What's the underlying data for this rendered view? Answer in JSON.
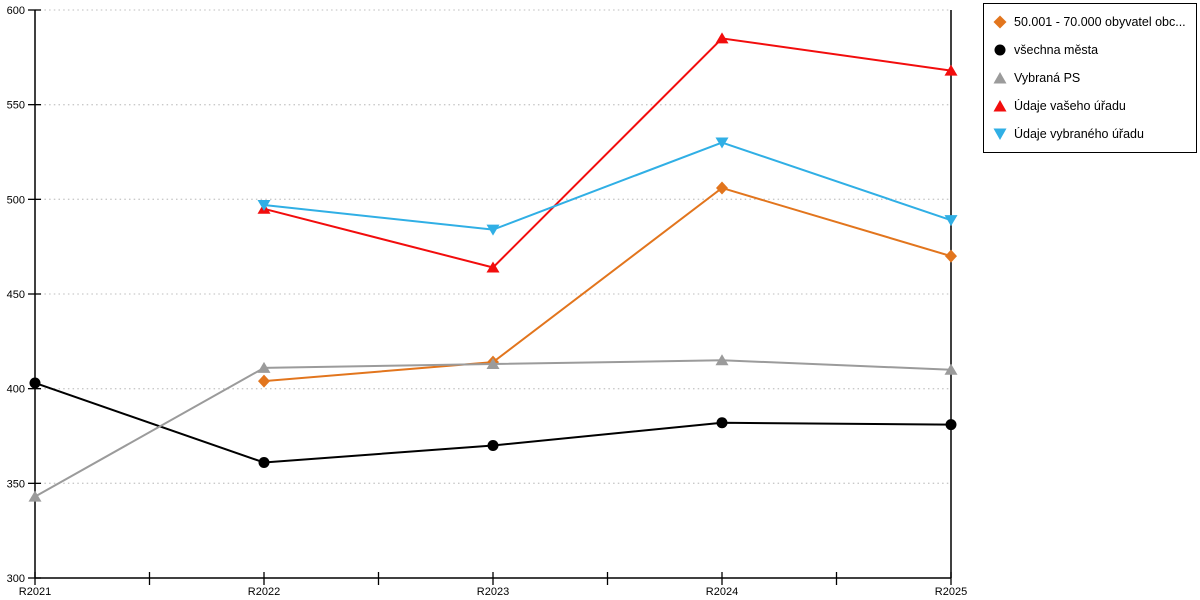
{
  "chart_data": {
    "type": "line",
    "title": "",
    "xlabel": "",
    "ylabel": "",
    "categories": [
      "R2021",
      "R2022",
      "R2023",
      "R2024",
      "R2025"
    ],
    "ylim": [
      300,
      600
    ],
    "yticks": [
      300,
      350,
      400,
      450,
      500,
      550,
      600
    ],
    "grid": "horizontal-dotted",
    "legend_position": "top-right",
    "colors": {
      "axis": "#000000",
      "gridline": "#c9c9c9",
      "background": "#ffffff"
    },
    "series": [
      {
        "name": "50.001 - 70.000 obyvatel obc...",
        "color": "#E2751D",
        "marker": "diamond",
        "values": [
          null,
          404,
          414,
          506,
          470
        ]
      },
      {
        "name": "všechna města",
        "color": "#000000",
        "marker": "circle",
        "values": [
          403,
          361,
          370,
          382,
          381
        ]
      },
      {
        "name": "Vybraná PS",
        "color": "#9B9B9B",
        "marker": "triangle-up",
        "values": [
          343,
          411,
          413,
          415,
          410
        ]
      },
      {
        "name": "Údaje vašeho úřadu",
        "color": "#F20D0D",
        "marker": "triangle-up",
        "values": [
          null,
          495,
          464,
          585,
          568
        ]
      },
      {
        "name": "Údaje vybraného úřadu",
        "color": "#30AFE5",
        "marker": "triangle-down",
        "values": [
          null,
          497,
          484,
          530,
          489
        ]
      }
    ]
  }
}
